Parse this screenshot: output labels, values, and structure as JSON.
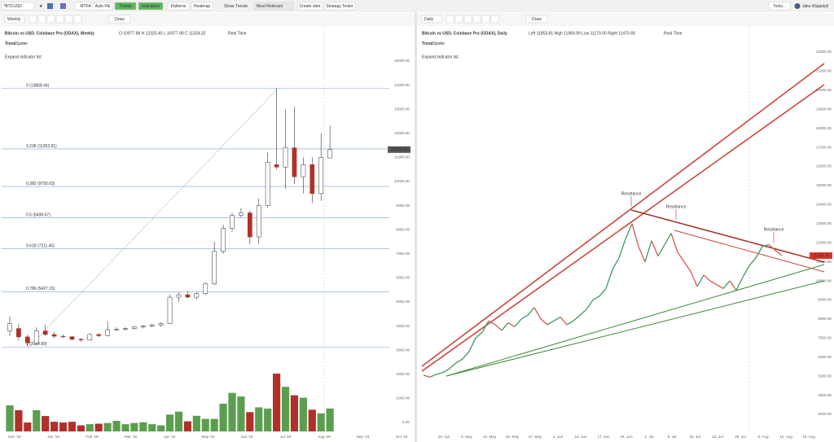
{
  "toolbar": {
    "symbol": "^BTCUSD",
    "buttons": [
      "MTFA",
      "Auto Fib",
      "Trends",
      "Indicators",
      "Patterns",
      "Heatmap"
    ],
    "show_trends": "Show Trends",
    "sort": "Most Relevant",
    "actions": [
      "Create alert",
      "Strategy Tester"
    ],
    "tools": "Tools...",
    "user": "Jake Wujastyk"
  },
  "chart_data": [
    {
      "type": "candlestick",
      "interval": "Weekly",
      "draw": "Draw",
      "title": "Bitcoin vs USD, Coinbase Pro (GDAX), Weekly",
      "ohlc": "O 10977.98   H 12320.40   L 10977.98   C 11324.32",
      "status": "Real Time",
      "brand": [
        "Trend",
        "Spider"
      ],
      "expand": "Expand indicator list",
      "watermark": "^BTCUSD",
      "watermark_subtitle": "Bitcoin vs USD, Coinbase Pro (GDAX)",
      "open": [
        3800,
        3900,
        3550,
        3300,
        3800,
        3650,
        3580,
        3560,
        3450,
        3420,
        3650,
        3600,
        3850,
        3870,
        3900,
        3960,
        4000,
        4050,
        4100,
        5200,
        5300,
        5200,
        5350,
        5750,
        7100,
        8050,
        8600,
        8700,
        7700,
        9000,
        10700,
        10600,
        11400,
        10200,
        10700,
        9500,
        10977.98
      ],
      "high": [
        4400,
        4100,
        3650,
        3950,
        4050,
        3750,
        3650,
        3600,
        3500,
        3700,
        3700,
        4200,
        3950,
        3950,
        4000,
        4050,
        4100,
        4150,
        5300,
        5400,
        5450,
        5400,
        5800,
        7500,
        8200,
        8700,
        8900,
        8800,
        9300,
        11200,
        13868.44,
        13000,
        13100,
        11000,
        11000,
        12000,
        12320.4
      ],
      "low": [
        3600,
        3400,
        3150,
        3200,
        3600,
        3500,
        3500,
        3400,
        3350,
        3400,
        3550,
        3580,
        3800,
        3820,
        3850,
        3900,
        3950,
        3980,
        4080,
        5000,
        5150,
        5100,
        5300,
        5700,
        7000,
        7900,
        8500,
        7400,
        7400,
        8900,
        10500,
        9700,
        9900,
        9500,
        9100,
        9200,
        10977.98
      ],
      "close": [
        4100,
        3550,
        3300,
        3800,
        3650,
        3580,
        3560,
        3450,
        3420,
        3650,
        3600,
        3850,
        3870,
        3900,
        3960,
        4000,
        4050,
        4100,
        5200,
        5300,
        5200,
        5350,
        5750,
        7100,
        8050,
        8600,
        8700,
        7700,
        9000,
        10800,
        10600,
        11400,
        10200,
        10700,
        9500,
        11000,
        11324.32
      ],
      "volume": [
        1080,
        880,
        370,
        880,
        640,
        400,
        370,
        400,
        250,
        300,
        320,
        350,
        440,
        300,
        350,
        380,
        300,
        250,
        700,
        820,
        420,
        650,
        520,
        520,
        1150,
        1600,
        1450,
        800,
        1000,
        950,
        2400,
        1850,
        1500,
        1400,
        900,
        750,
        950
      ],
      "up_color": "#ffffff",
      "down_color": "#b0312a",
      "volume_up_color": "#5c9e4f",
      "volume_down_color": "#b0312a",
      "fib_levels": [
        {
          "value": 13868.44,
          "label": "0 (13868.44)"
        },
        {
          "value": 11353.91,
          "label": "0.236 (11353.91)"
        },
        {
          "value": 9793.63,
          "label": "0.382 (9793.63)"
        },
        {
          "value": 8498.67,
          "label": "0.5 (8498.67)"
        },
        {
          "value": 7211.4,
          "label": "0.618 (7211.40)"
        },
        {
          "value": 5427.15,
          "label": "0.786 (5427.15)"
        },
        {
          "value": 3128.89,
          "label": "1 (3128.89)"
        }
      ],
      "last_price": 11324.32,
      "x_labels": [
        "Dec '18",
        "Jan '19",
        "Feb '19",
        "Mar '19",
        "Apr '19",
        "May '19",
        "Jun '19",
        "Jul '19",
        "Aug '19",
        "Sep '19",
        "Oct '19"
      ],
      "ylim": [
        0,
        15000
      ],
      "yticks": [
        {
          "value": 0,
          "label": "0.00"
        },
        {
          "value": 1000,
          "label": "1000.00"
        },
        {
          "value": 2000,
          "label": "2000.00"
        },
        {
          "value": 3000,
          "label": "3000.00"
        },
        {
          "value": 4000,
          "label": "4000.00"
        },
        {
          "value": 5000,
          "label": "5000.00"
        },
        {
          "value": 6000,
          "label": "6000.00"
        },
        {
          "value": 7000,
          "label": "7000.00"
        },
        {
          "value": 8000,
          "label": "8000.00"
        },
        {
          "value": 9000,
          "label": "9000.00"
        },
        {
          "value": 10000,
          "label": "10000.00"
        },
        {
          "value": 11000,
          "label": "11000.00"
        },
        {
          "value": 12000,
          "label": "12000.00"
        },
        {
          "value": 13000,
          "label": "13000.00"
        },
        {
          "value": 14000,
          "label": "14000.00"
        },
        {
          "value": 15000,
          "label": "15000.00"
        }
      ]
    },
    {
      "type": "line",
      "interval": "Daily",
      "draw": "Draw",
      "title": "Bitcoin vs USD, Coinbase Pro (GDAX), Daily",
      "ohlc": "Left 11853.81   High 11969.99   Low 11170.00   Right 11470.69",
      "status": "Real Time",
      "brand": [
        "Trend",
        "Spider"
      ],
      "expand": "Expand indicator list",
      "watermark": "^BTCUSD",
      "watermark_subtitle": "Bitcoin vs USD, Coinbase Pro (GDAX)",
      "values": [
        5050,
        4950,
        5100,
        5200,
        5400,
        5700,
        5900,
        6300,
        7000,
        7300,
        7900,
        7700,
        7400,
        7800,
        7600,
        8000,
        8200,
        8600,
        8000,
        7700,
        7900,
        8100,
        7700,
        7900,
        8200,
        8500,
        9000,
        9200,
        9600,
        10600,
        11200,
        12200,
        13000,
        11800,
        11000,
        12100,
        11300,
        11900,
        12500,
        11500,
        11000,
        10500,
        9700,
        10300,
        10000,
        9800,
        9600,
        10000,
        9500,
        10200,
        10800,
        11200,
        11800,
        11900,
        11600,
        11324.16
      ],
      "up_color": "#3c9a5f",
      "down_color": "#d9534f",
      "annotations": [
        "Resistance",
        "Resistance",
        "Resistance"
      ],
      "last_price": 11324.16,
      "x_labels": [
        "29. Apr",
        "6. May",
        "13. May",
        "20. May",
        "27. May",
        "3. Jun",
        "10. Jun",
        "17. Jun",
        "24. Jun",
        "1. Jul",
        "8. Jul",
        "15. Jul",
        "22. Jul",
        "29. Jul",
        "5. Aug",
        "12. Aug",
        "19. Aug"
      ],
      "ylim": [
        3000,
        22000
      ],
      "yticks": [
        {
          "value": 3000,
          "label": "3000.00"
        },
        {
          "value": 4000,
          "label": "4000.00"
        },
        {
          "value": 5000,
          "label": "5000.00"
        },
        {
          "value": 6000,
          "label": "6000.00"
        },
        {
          "value": 7000,
          "label": "7000.00"
        },
        {
          "value": 8000,
          "label": "8000.00"
        },
        {
          "value": 9000,
          "label": "9000.00"
        },
        {
          "value": 10000,
          "label": "10000.00"
        },
        {
          "value": 11000,
          "label": "11000.00"
        },
        {
          "value": 12000,
          "label": "12000.00"
        },
        {
          "value": 13000,
          "label": "13000.00"
        },
        {
          "value": 14000,
          "label": "14000.00"
        },
        {
          "value": 15000,
          "label": "15000.00"
        },
        {
          "value": 16000,
          "label": "16000.00"
        },
        {
          "value": 17000,
          "label": "17000.00"
        },
        {
          "value": 18000,
          "label": "18000.00"
        },
        {
          "value": 19000,
          "label": "19000.00"
        },
        {
          "value": 20000,
          "label": "20000.00"
        },
        {
          "value": 21000,
          "label": "21000.00"
        },
        {
          "value": 22000,
          "label": "22000.00"
        }
      ]
    }
  ]
}
